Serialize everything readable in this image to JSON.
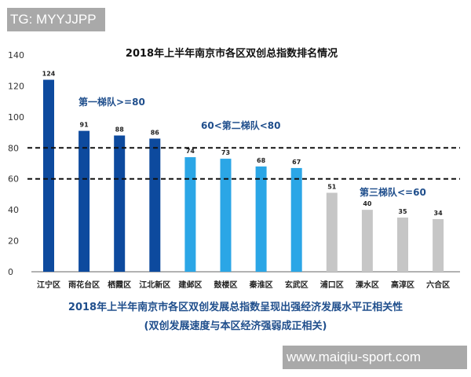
{
  "watermarks": {
    "top": "TG: MYYJJPP",
    "bottom": "www.maiqiu-sport.com"
  },
  "chart_data": {
    "type": "bar",
    "title": "2018年上半年南京市各区双创总指数排名情况",
    "categories": [
      "江宁区",
      "雨花台区",
      "栖霞区",
      "江北新区",
      "建邺区",
      "鼓楼区",
      "秦淮区",
      "玄武区",
      "浦口区",
      "溧水区",
      "高淳区",
      "六合区"
    ],
    "values": [
      124,
      91,
      88,
      86,
      74,
      73,
      68,
      67,
      51,
      40,
      35,
      34
    ],
    "tiers": [
      1,
      1,
      1,
      1,
      2,
      2,
      2,
      2,
      3,
      3,
      3,
      3
    ],
    "tier_colors": {
      "1": "#0d4a9e",
      "2": "#2ba6e6",
      "3": "#c6c6c6"
    },
    "ylim": [
      0,
      140
    ],
    "yticks": [
      0,
      20,
      40,
      60,
      80,
      100,
      120,
      140
    ],
    "reference_lines": [
      80,
      60
    ],
    "annotations": [
      "第一梯队>=80",
      "60<第二梯队<80",
      "第三梯队<=60"
    ],
    "grid": false
  },
  "captions": {
    "line1": "2018年上半年南京市各区双创发展总指数呈现出强经济发展水平正相关性",
    "line2": "(双创发展速度与本区经济强弱成正相关)"
  }
}
